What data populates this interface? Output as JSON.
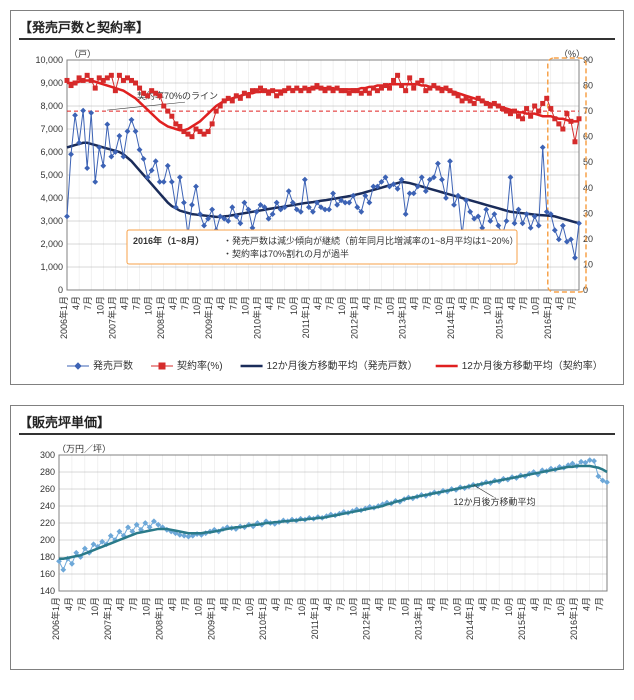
{
  "chart1": {
    "title": "【発売戸数と契約率】",
    "type": "combo-line-scatter-dual-axis",
    "y_left_label": "（戸）",
    "y_right_label": "（%）",
    "y_left": {
      "min": 0,
      "max": 10000,
      "step": 1000
    },
    "y_right": {
      "min": 0,
      "max": 90,
      "step": 10
    },
    "background": "#ffffff",
    "grid_color": "#b0b0b0",
    "ref_line": {
      "y_right": 70,
      "color": "#e02020",
      "label": "契約率70%のライン"
    },
    "highlight": {
      "x_from": "2016年1月",
      "x_to": "7月",
      "color": "#f7a24a"
    },
    "annotation": {
      "header": "2016年（1~8月）",
      "lines": [
        "・発売戸数は減少傾向が継続（前年同月比増減率の1~8月平均は1~20%）",
        "・契約率は70%割れの月が過半"
      ],
      "border": "#f7a24a"
    },
    "x_labels": [
      "2006年1月",
      "4月",
      "7月",
      "10月",
      "2007年1月",
      "4月",
      "7月",
      "10月",
      "2008年1月",
      "4月",
      "7月",
      "10月",
      "2009年1月",
      "4月",
      "7月",
      "10月",
      "2010年1月",
      "4月",
      "7月",
      "10月",
      "2011年1月",
      "4月",
      "7月",
      "10月",
      "2012年1月",
      "4月",
      "7月",
      "10月",
      "2013年1月",
      "4月",
      "7月",
      "10月",
      "2014年1月",
      "4月",
      "7月",
      "10月",
      "2015年1月",
      "4月",
      "7月",
      "10月",
      "2016年1月",
      "4月",
      "7月"
    ],
    "series": {
      "units_sold": {
        "label": "発売戸数",
        "color": "#3d63b5",
        "marker": "diamond",
        "marker_size": 4,
        "line_width": 1,
        "data": [
          3200,
          5900,
          7600,
          6400,
          7800,
          5300,
          7700,
          4700,
          6200,
          5400,
          7200,
          5800,
          6000,
          6700,
          5800,
          6900,
          7400,
          6900,
          6100,
          5700,
          4900,
          5200,
          5600,
          4700,
          4700,
          5400,
          4700,
          3600,
          4900,
          3800,
          2400,
          3700,
          4500,
          3300,
          2800,
          3100,
          3500,
          2600,
          3200,
          3100,
          3000,
          3600,
          3200,
          2900,
          3800,
          3500,
          2700,
          3400,
          3700,
          3600,
          3100,
          3300,
          3800,
          3500,
          3600,
          4300,
          3800,
          3500,
          3400,
          4800,
          3600,
          3400,
          3800,
          3600,
          3500,
          3500,
          4200,
          3700,
          3900,
          3800,
          3800,
          4100,
          3600,
          3400,
          4100,
          3800,
          4500,
          4500,
          4700,
          4900,
          4500,
          4600,
          4400,
          4800,
          3300,
          4200,
          4200,
          4500,
          4900,
          4300,
          4800,
          4900,
          5500,
          4800,
          4000,
          5600,
          3700,
          4100,
          2400,
          3900,
          3400,
          3100,
          3200,
          2700,
          3500,
          3000,
          3300,
          2800,
          2400,
          3000,
          4900,
          2900,
          3500,
          2900,
          3300,
          2700,
          3200,
          2800,
          6200,
          3400,
          3300,
          2600,
          2200,
          2800,
          2100,
          2200,
          1400,
          2900
        ]
      },
      "contract_rate": {
        "label": "契約率(%)",
        "color": "#d52b2b",
        "marker": "square",
        "marker_size": 4,
        "line_width": 1,
        "data": [
          82,
          80,
          81,
          83,
          82,
          84,
          82,
          79,
          83,
          82,
          83,
          84,
          78,
          84,
          82,
          83,
          82,
          81,
          79,
          77,
          76,
          78,
          77,
          76,
          72,
          70,
          68,
          65,
          64,
          62,
          61,
          60,
          63,
          62,
          61,
          62,
          65,
          70,
          72,
          74,
          75,
          74,
          76,
          75,
          77,
          76,
          78,
          78,
          79,
          78,
          77,
          78,
          76,
          77,
          78,
          79,
          78,
          79,
          78,
          79,
          78,
          79,
          80,
          79,
          78,
          79,
          78,
          79,
          78,
          78,
          77,
          78,
          78,
          77,
          78,
          77,
          79,
          78,
          79,
          80,
          79,
          82,
          84,
          80,
          78,
          83,
          79,
          81,
          82,
          78,
          79,
          80,
          79,
          78,
          79,
          78,
          77,
          76,
          74,
          75,
          74,
          73,
          75,
          74,
          73,
          72,
          73,
          72,
          71,
          70,
          69,
          70,
          68,
          67,
          71,
          68,
          72,
          70,
          73,
          75,
          71,
          67,
          65,
          63,
          69,
          66,
          58,
          67
        ]
      },
      "ma_units": {
        "label": "12か月後方移動平均（発売戸数）",
        "color": "#1a2c5a",
        "line_width": 2.5,
        "data": [
          6200,
          6250,
          6300,
          6350,
          6400,
          6400,
          6350,
          6300,
          6250,
          6200,
          6150,
          6100,
          6050,
          6000,
          5900,
          5750,
          5600,
          5400,
          5200,
          5000,
          4800,
          4600,
          4400,
          4200,
          4000,
          3800,
          3650,
          3550,
          3450,
          3400,
          3350,
          3300,
          3280,
          3260,
          3240,
          3220,
          3200,
          3180,
          3180,
          3200,
          3220,
          3250,
          3280,
          3310,
          3340,
          3370,
          3400,
          3430,
          3460,
          3490,
          3520,
          3550,
          3580,
          3600,
          3630,
          3660,
          3690,
          3720,
          3750,
          3780,
          3800,
          3820,
          3850,
          3880,
          3900,
          3930,
          3960,
          3990,
          4020,
          4050,
          4080,
          4120,
          4160,
          4200,
          4250,
          4300,
          4350,
          4400,
          4450,
          4500,
          4550,
          4600,
          4650,
          4700,
          4680,
          4650,
          4600,
          4550,
          4500,
          4450,
          4400,
          4350,
          4300,
          4250,
          4200,
          4150,
          4100,
          4050,
          4000,
          3950,
          3900,
          3850,
          3800,
          3750,
          3700,
          3650,
          3600,
          3550,
          3500,
          3450,
          3400,
          3380,
          3360,
          3340,
          3320,
          3300,
          3280,
          3260,
          3250,
          3240,
          3220,
          3200,
          3150,
          3100,
          3050,
          3000,
          2950,
          2900
        ]
      },
      "ma_rate": {
        "label": "12か月後方移動平均（契約率）",
        "color": "#e02020",
        "line_width": 2.5,
        "data": [
          81,
          81,
          81,
          81.5,
          82,
          82,
          82,
          81.5,
          81,
          80.5,
          80,
          79.5,
          79,
          78.5,
          78,
          77,
          76,
          75,
          73.5,
          72,
          70.5,
          69,
          67.5,
          66,
          65,
          64,
          63.5,
          63,
          62.5,
          62.5,
          63,
          64,
          65,
          66,
          67.5,
          69,
          70.5,
          72,
          73,
          74,
          74.5,
          75,
          75.5,
          76,
          76.5,
          77,
          77,
          77.5,
          77.5,
          78,
          78,
          78,
          78,
          78,
          78,
          78.5,
          78.5,
          78.5,
          78.5,
          78.5,
          79,
          79,
          79,
          79,
          79,
          79,
          79,
          78.5,
          78.5,
          78.5,
          78.5,
          78.5,
          78.5,
          79,
          79,
          79.5,
          79.5,
          80,
          80,
          80,
          80.5,
          80.5,
          80.5,
          80.5,
          80.5,
          80.5,
          80.5,
          80.5,
          80,
          80,
          79.5,
          79.5,
          79,
          79,
          78.5,
          78,
          77.5,
          77,
          76.5,
          76,
          75.5,
          75,
          74.5,
          74,
          73.5,
          73,
          72.5,
          72,
          71.5,
          71,
          70.5,
          70,
          69.5,
          69.5,
          69,
          69,
          69,
          68.5,
          68,
          68,
          68,
          67.5,
          67,
          67,
          66.5,
          66,
          66,
          66
        ]
      }
    }
  },
  "chart2": {
    "title": "【販売坪単価】",
    "type": "line-scatter",
    "y_label": "（万円／坪）",
    "y": {
      "min": 140,
      "max": 300,
      "step": 20
    },
    "background": "#ffffff",
    "grid_color": "#b0b0b0",
    "ma_label": "12か月後方移動平均",
    "x_labels": [
      "2006年1月",
      "4月",
      "7月",
      "10月",
      "2007年1月",
      "4月",
      "7月",
      "10月",
      "2008年1月",
      "4月",
      "7月",
      "10月",
      "2009年1月",
      "4月",
      "7月",
      "10月",
      "2010年1月",
      "4月",
      "7月",
      "10月",
      "2011年1月",
      "4月",
      "7月",
      "10月",
      "2012年1月",
      "4月",
      "7月",
      "10月",
      "2013年1月",
      "4月",
      "7月",
      "10月",
      "2014年1月",
      "4月",
      "7月",
      "10月",
      "2015年1月",
      "4月",
      "7月",
      "10月",
      "2016年1月",
      "4月",
      "7月"
    ],
    "series": {
      "price": {
        "color": "#6ea8d8",
        "marker": "diamond",
        "marker_size": 4,
        "line_width": 1,
        "data": [
          175,
          165,
          178,
          172,
          185,
          180,
          190,
          185,
          195,
          192,
          198,
          195,
          205,
          200,
          210,
          205,
          215,
          210,
          218,
          212,
          220,
          215,
          222,
          218,
          215,
          212,
          210,
          208,
          206,
          205,
          204,
          205,
          207,
          206,
          208,
          210,
          212,
          210,
          213,
          215,
          214,
          213,
          216,
          215,
          218,
          216,
          220,
          218,
          222,
          220,
          219,
          221,
          223,
          222,
          224,
          223,
          225,
          224,
          226,
          225,
          227,
          226,
          228,
          230,
          229,
          231,
          233,
          232,
          234,
          236,
          235,
          237,
          239,
          238,
          240,
          242,
          244,
          243,
          246,
          245,
          248,
          250,
          249,
          251,
          253,
          252,
          254,
          256,
          255,
          258,
          257,
          260,
          259,
          262,
          261,
          263,
          265,
          264,
          266,
          268,
          267,
          270,
          269,
          272,
          271,
          274,
          273,
          276,
          275,
          278,
          280,
          277,
          282,
          281,
          284,
          283,
          286,
          285,
          288,
          290,
          287,
          292,
          291,
          294,
          293,
          275,
          270,
          268
        ]
      },
      "ma_price": {
        "color": "#2a7a8a",
        "line_width": 2.5,
        "data": [
          178,
          178,
          179,
          180,
          181,
          182,
          184,
          186,
          188,
          190,
          192,
          194,
          196,
          198,
          200,
          202,
          204,
          206,
          208,
          209,
          210,
          211,
          212,
          213,
          213,
          213,
          212,
          211,
          210,
          209,
          208,
          208,
          208,
          208,
          209,
          209,
          210,
          211,
          212,
          213,
          214,
          215,
          215,
          216,
          217,
          218,
          218,
          219,
          220,
          220,
          221,
          221,
          222,
          222,
          223,
          223,
          224,
          224,
          225,
          225,
          226,
          226,
          227,
          228,
          229,
          230,
          231,
          232,
          233,
          234,
          235,
          236,
          237,
          238,
          239,
          240,
          242,
          243,
          245,
          246,
          248,
          249,
          250,
          251,
          252,
          253,
          254,
          255,
          256,
          257,
          258,
          259,
          260,
          261,
          262,
          263,
          264,
          265,
          266,
          267,
          268,
          269,
          270,
          271,
          272,
          273,
          274,
          275,
          276,
          277,
          278,
          279,
          280,
          281,
          282,
          283,
          284,
          285,
          286,
          286,
          287,
          287,
          287,
          287,
          286,
          285,
          283,
          280
        ]
      }
    }
  }
}
